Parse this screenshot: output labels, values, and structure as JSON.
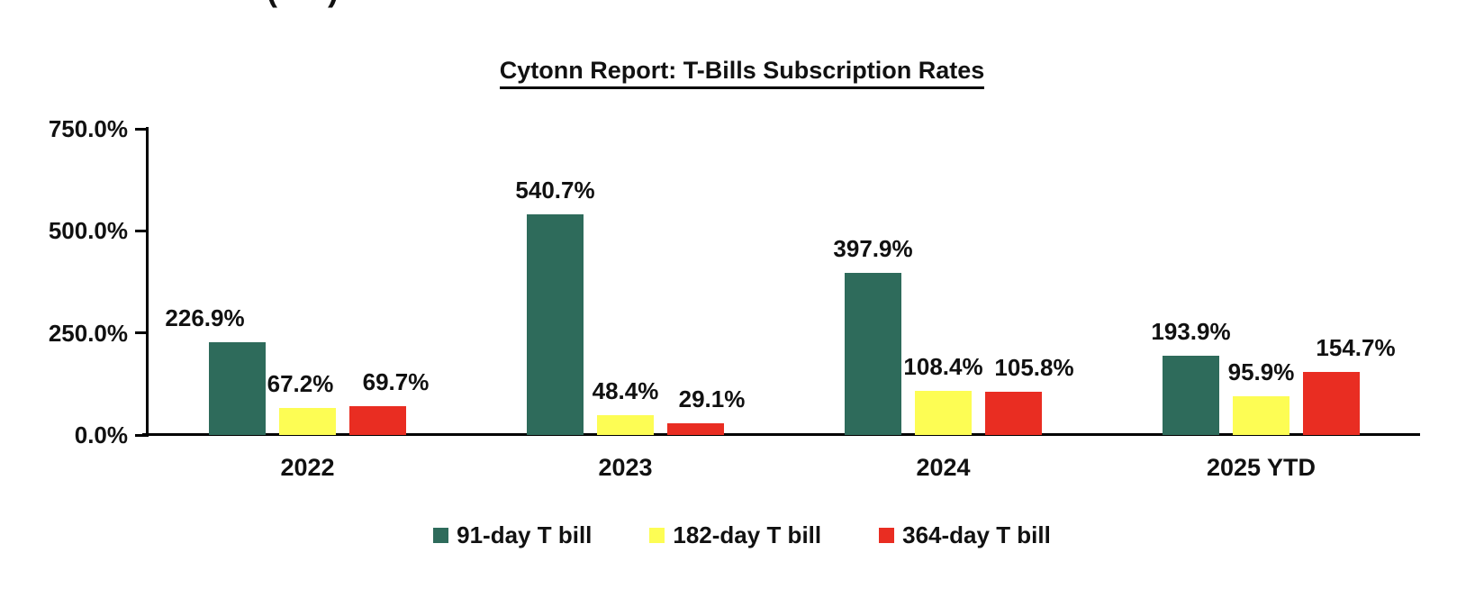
{
  "page": {
    "background": "#FFFFFF",
    "cropped_text_fragment": "( )"
  },
  "chart_data": {
    "type": "bar",
    "title": "Cytonn Report: T-Bills Subscription Rates",
    "categories": [
      "2022",
      "2023",
      "2024",
      "2025 YTD"
    ],
    "series": [
      {
        "name": "91-day T bill",
        "color": "#2E6B5B",
        "values": [
          226.9,
          540.7,
          397.9,
          193.9
        ],
        "labels": [
          "226.9%",
          "540.7%",
          "397.9%",
          "193.9%"
        ],
        "label_dx": [
          -36,
          0,
          0,
          0
        ]
      },
      {
        "name": "182-day T bill",
        "color": "#FDFD54",
        "values": [
          67.2,
          48.4,
          108.4,
          95.9
        ],
        "labels": [
          "67.2%",
          "48.4%",
          "108.4%",
          "95.9%"
        ],
        "label_dx": [
          -8,
          0,
          0,
          0
        ]
      },
      {
        "name": "364-day T bill",
        "color": "#E92D22",
        "values": [
          69.7,
          29.1,
          105.8,
          154.7
        ],
        "labels": [
          "69.7%",
          "29.1%",
          "105.8%",
          "154.7%"
        ],
        "label_dx": [
          20,
          18,
          23,
          27
        ]
      }
    ],
    "y_axis": {
      "min": 0,
      "max": 750,
      "ticks": [
        {
          "label": "750.0%",
          "value": 750
        },
        {
          "label": "500.0%",
          "value": 500
        },
        {
          "label": "250.0%",
          "value": 250
        },
        {
          "label": "0.0%",
          "value": 0
        }
      ]
    },
    "xlabel": "",
    "ylabel": "",
    "legend_position": "bottom",
    "grid": false,
    "axis_color": "#000000",
    "text_color": "#111111"
  }
}
